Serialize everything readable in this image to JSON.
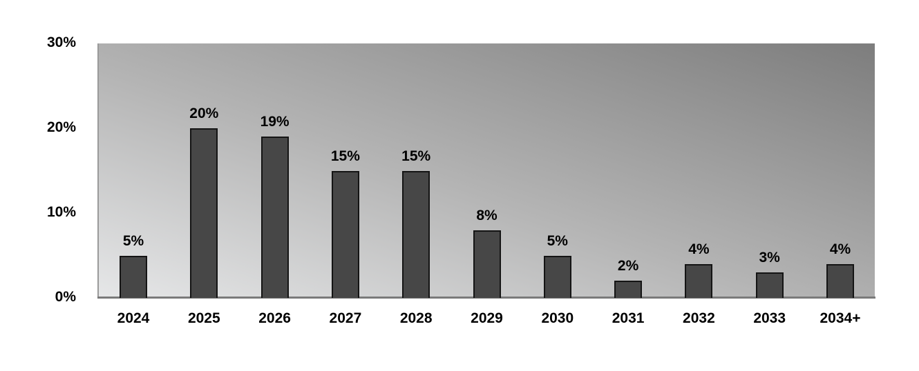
{
  "chart_data": {
    "type": "bar",
    "title": "",
    "xlabel": "",
    "ylabel": "",
    "categories": [
      "2024",
      "2025",
      "2026",
      "2027",
      "2028",
      "2029",
      "2030",
      "2031",
      "2032",
      "2033",
      "2034+"
    ],
    "values": [
      5,
      20,
      19,
      15,
      15,
      8,
      5,
      2,
      4,
      3,
      4
    ],
    "value_labels": [
      "5%",
      "20%",
      "19%",
      "15%",
      "15%",
      "8%",
      "5%",
      "2%",
      "4%",
      "3%",
      "4%"
    ],
    "ylim": [
      0,
      30
    ],
    "yticks": [
      "0%",
      "10%",
      "20%",
      "30%"
    ],
    "grid": false,
    "legend": null,
    "colors": {
      "bar": "#474747",
      "bar_border": "#141414",
      "background_light": "#e6e7e8",
      "background_dark": "#7d7d7d"
    }
  }
}
